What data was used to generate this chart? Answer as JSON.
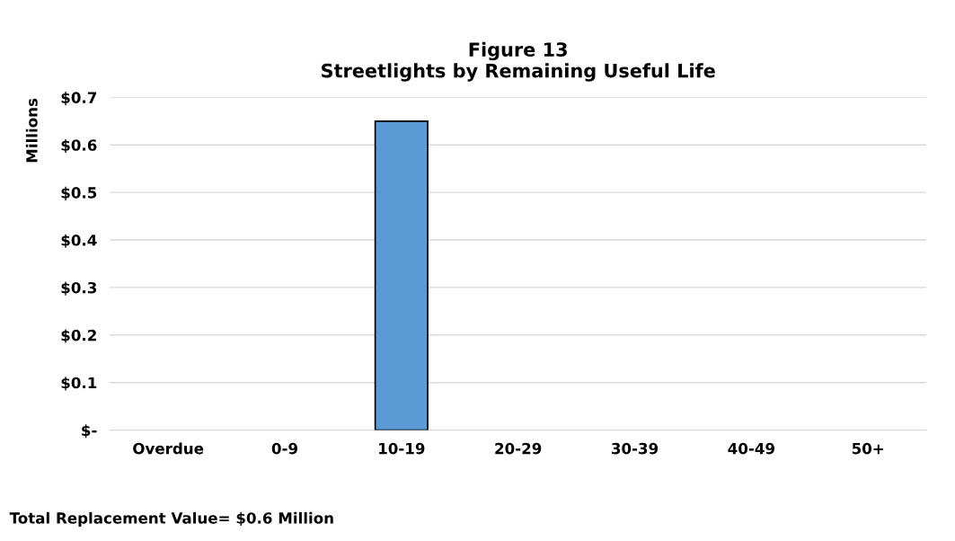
{
  "chart_data": {
    "type": "bar",
    "title": "Figure 13\nStreetlights by Remaining Useful Life",
    "ylabel": "Millions",
    "categories": [
      "Overdue",
      "0-9",
      "10-19",
      "20-29",
      "30-39",
      "40-49",
      "50+"
    ],
    "values": [
      0,
      0,
      0.65,
      0,
      0,
      0,
      0
    ],
    "color": "#5b9bd5",
    "ylim": [
      0,
      0.7
    ],
    "yticks": [
      {
        "value": 0,
        "label": "$-"
      },
      {
        "value": 0.1,
        "label": "$0.1"
      },
      {
        "value": 0.2,
        "label": "$0.2"
      },
      {
        "value": 0.3,
        "label": "$0.3"
      },
      {
        "value": 0.4,
        "label": "$0.4"
      },
      {
        "value": 0.5,
        "label": "$0.5"
      },
      {
        "value": 0.6,
        "label": "$0.6"
      },
      {
        "value": 0.7,
        "label": "$0.7"
      }
    ],
    "grid": "y",
    "annotations": [
      "Total Replacement Value= $0.6 Million"
    ]
  }
}
